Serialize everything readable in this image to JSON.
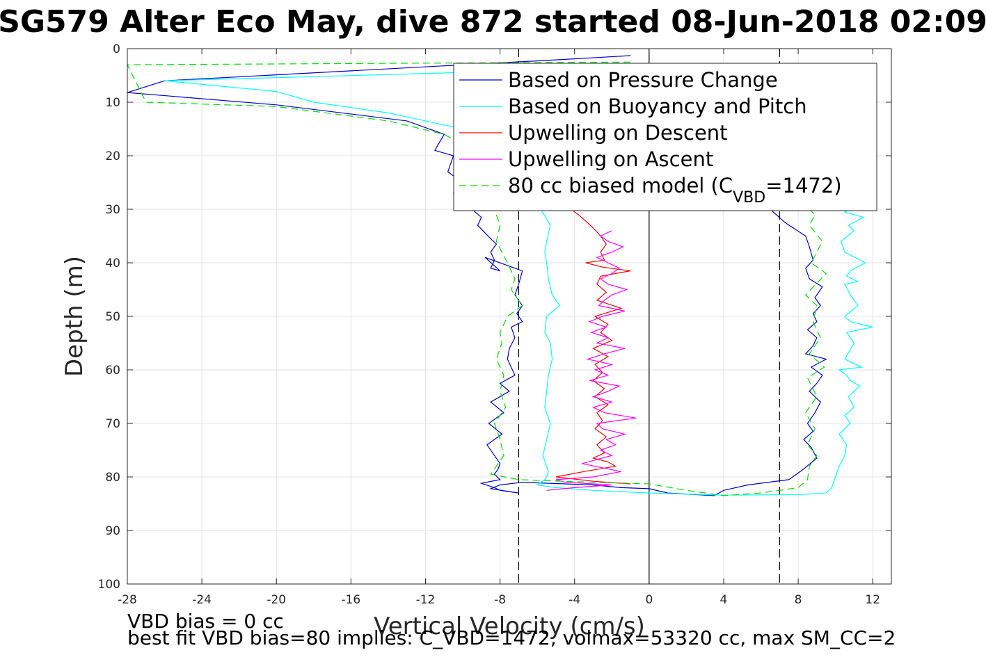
{
  "chart_data": {
    "type": "line",
    "title": "SG579 Alter Eco May, dive 872 started 08-Jun-2018 02:09",
    "xlabel": "Vertical Velocity (cm/s)",
    "ylabel": "Depth (m)",
    "xlim": [
      -28,
      13
    ],
    "ylim": [
      0,
      100
    ],
    "y_reversed": true,
    "xticks": [
      -28,
      -24,
      -20,
      -16,
      -12,
      -8,
      -4,
      0,
      4,
      8,
      12
    ],
    "yticks": [
      0,
      10,
      20,
      30,
      40,
      50,
      60,
      70,
      80,
      90,
      100
    ],
    "grid": true,
    "legend_placement": "top-right",
    "reference_lines": [
      {
        "x": -7,
        "style": "dashed",
        "color": "#000000"
      },
      {
        "x": 0,
        "style": "solid",
        "color": "#000000"
      },
      {
        "x": 7,
        "style": "dashed",
        "color": "#000000"
      }
    ],
    "series": [
      {
        "name": "Based on Pressure Change",
        "color": "#0000cd",
        "style": "solid",
        "x": [
          -1.0,
          -4.5,
          -26.0,
          -28.0,
          -20.0,
          -13.0,
          -11.0,
          -11.5,
          -10.5,
          -10.8,
          -10.0,
          -10.5,
          -10.2,
          -9.5,
          -9.0,
          -9.2,
          -8.5,
          -8.2,
          -8.5,
          -8.3,
          -8.5,
          -8.0,
          -8.8,
          -6.8,
          -7.0,
          -7.2,
          -6.8,
          -7.1,
          -6.8,
          -7.4,
          -7.2,
          -7.5,
          -7.6,
          -7.2,
          -8.0,
          -7.5,
          -8.5,
          -7.8,
          -8.6,
          -7.9,
          -8.7,
          -8.3,
          -8.0,
          -8.1,
          -8.3,
          -8.0,
          -9.0,
          -8.3,
          -8.0,
          -7.0,
          -8.5,
          -8.0,
          -6.8,
          -3.0,
          -1.5,
          0.0,
          1.0,
          3.5,
          4.0,
          5.3,
          7.5,
          8.3,
          9.0,
          8.7,
          8.3,
          8.8,
          8.5,
          8.9,
          9.2,
          8.6,
          9.0,
          9.3,
          8.7,
          9.5,
          8.4,
          8.8,
          9.0,
          8.5,
          9.0,
          8.8,
          9.2,
          8.9,
          9.3,
          8.6,
          8.4,
          8.8,
          8.6,
          8.4,
          7.3,
          6.5
        ],
        "y": [
          1.3,
          2.0,
          6.0,
          8.2,
          10.5,
          13.5,
          16.0,
          19.0,
          20.0,
          23.0,
          25.0,
          27.0,
          28.0,
          30.0,
          31.5,
          33.0,
          35.5,
          36.5,
          38.0,
          39.5,
          41.0,
          41.5,
          39.0,
          41.5,
          44.0,
          46.0,
          48.0,
          49.5,
          51.0,
          52.0,
          54.0,
          56.0,
          58.0,
          61.0,
          62.5,
          64.0,
          66.0,
          68.0,
          70.0,
          72.0,
          74.0,
          76.0,
          77.5,
          78.5,
          79.5,
          80.5,
          81.2,
          82.0,
          82.5,
          83.0,
          82.2,
          81.5,
          81.0,
          81.5,
          82.0,
          82.2,
          83.0,
          83.5,
          82.5,
          81.5,
          80.5,
          78.5,
          76.5,
          74.5,
          73.0,
          71.5,
          70.0,
          68.0,
          66.0,
          64.0,
          62.5,
          61.0,
          59.5,
          58.0,
          57.0,
          55.5,
          54.0,
          52.5,
          51.0,
          49.5,
          48.0,
          46.5,
          44.5,
          43.0,
          41.0,
          39.5,
          37.0,
          35.0,
          32.5,
          30.0
        ]
      },
      {
        "name": "Based on Buoyancy and Pitch",
        "color": "#00ffff",
        "style": "solid",
        "x": [
          -0.5,
          -26.0,
          -20.0,
          -18.0,
          -14.0,
          -12.0,
          -10.0,
          -8.5,
          -7.5,
          -6.8,
          -5.8,
          -5.3,
          -5.5,
          -5.6,
          -5.5,
          -5.4,
          -5.2,
          -4.8,
          -5.5,
          -5.6,
          -5.3,
          -5.2,
          -5.4,
          -5.5,
          -5.6,
          -5.3,
          -5.5,
          -5.7,
          -5.5,
          -5.4,
          -5.5,
          -5.6,
          -5.8,
          -6.0,
          -5.0,
          -3.0,
          0.0,
          4.0,
          8.0,
          9.5,
          9.8,
          10.0,
          10.2,
          10.5,
          10.6,
          10.2,
          10.8,
          10.5,
          11.0,
          10.7,
          11.3,
          10.8,
          10.6,
          10.2,
          11.4,
          10.5,
          11.0,
          10.6,
          12.0,
          10.8,
          10.5,
          11.2,
          10.8,
          10.5,
          11.2,
          10.6,
          10.8,
          11.6,
          10.5,
          10.3,
          11.0,
          10.7,
          11.5,
          10.5,
          10.8,
          10.3
        ],
        "y": [
          3.5,
          6.0,
          8.0,
          10.0,
          12.0,
          13.5,
          15.0,
          17.5,
          20.0,
          25.0,
          30.0,
          33.0,
          36.0,
          38.0,
          40.0,
          43.0,
          46.0,
          48.0,
          50.0,
          53.0,
          55.0,
          58.0,
          61.0,
          64.0,
          67.0,
          70.0,
          73.0,
          76.0,
          78.0,
          79.0,
          80.0,
          80.5,
          81.0,
          81.5,
          82.0,
          82.5,
          83.0,
          83.4,
          83.3,
          83.0,
          82.0,
          80.0,
          78.0,
          76.0,
          74.0,
          72.0,
          70.0,
          68.5,
          67.0,
          65.0,
          63.0,
          62.0,
          61.0,
          60.0,
          59.5,
          58.0,
          55.0,
          53.0,
          52.0,
          51.0,
          50.0,
          48.0,
          46.0,
          44.0,
          43.5,
          42.5,
          41.5,
          40.0,
          38.0,
          36.0,
          34.0,
          33.0,
          31.5,
          30.5,
          30.0,
          29.5
        ]
      },
      {
        "name": "Upwelling on Descent",
        "color": "#ff0000",
        "style": "solid",
        "x": [
          -4.2,
          -3.8,
          -3.3,
          -3.0,
          -2.6,
          -2.3,
          -2.6,
          -2.4,
          -3.4,
          -2.5,
          -1.0,
          -2.6,
          -2.8,
          -2.3,
          -2.8,
          -1.5,
          -2.9,
          -2.2,
          -2.6,
          -2.0,
          -3.0,
          -2.2,
          -2.9,
          -2.5,
          -3.0,
          -2.4,
          -2.9,
          -2.2,
          -2.8,
          -2.5,
          -2.9,
          -2.3,
          -2.8,
          -2.4,
          -3.0,
          -2.2,
          -1.8,
          -3.5,
          -5.0,
          -3.0,
          -1.0
        ],
        "y": [
          30.0,
          31.0,
          32.5,
          33.5,
          35.0,
          36.5,
          38.0,
          39.5,
          40.0,
          40.8,
          41.5,
          42.5,
          44.0,
          45.5,
          47.0,
          48.5,
          50.0,
          51.5,
          53.0,
          54.5,
          56.0,
          57.5,
          59.0,
          60.5,
          62.0,
          63.5,
          65.0,
          66.5,
          68.0,
          69.5,
          71.0,
          72.5,
          74.0,
          75.5,
          76.5,
          77.2,
          78.0,
          79.0,
          80.0,
          80.8,
          81.3
        ]
      },
      {
        "name": "Upwelling on Ascent",
        "color": "#ff00ff",
        "style": "solid",
        "x": [
          -5.5,
          -4.0,
          -2.0,
          -4.5,
          -5.0,
          -3.0,
          -1.5,
          -3.6,
          -2.0,
          -2.6,
          -1.8,
          -2.3,
          -1.3,
          -2.5,
          -2.8,
          -0.7,
          -2.4,
          -3.0,
          -2.0,
          -3.0,
          -2.2,
          -1.6,
          -3.2,
          -2.2,
          -2.9,
          -2.0,
          -3.3,
          -2.4,
          -1.3,
          -2.8,
          -2.2,
          -3.1,
          -2.3,
          -3.2,
          -2.5,
          -1.3,
          -2.7,
          -2.4,
          -2.0,
          -1.2,
          -2.2,
          -2.6,
          -2.0,
          -1.6,
          -2.2,
          -2.8,
          -2.0,
          -1.4,
          -2.2,
          -2.6,
          -2.0
        ],
        "y": [
          82.5,
          82.0,
          81.5,
          81.0,
          80.5,
          80.0,
          79.0,
          77.5,
          76.0,
          75.0,
          74.0,
          73.0,
          72.0,
          71.0,
          70.0,
          69.0,
          68.0,
          67.0,
          66.0,
          65.0,
          64.0,
          63.0,
          62.0,
          61.0,
          60.0,
          59.0,
          58.0,
          57.0,
          56.0,
          55.0,
          54.0,
          53.0,
          52.0,
          51.0,
          50.0,
          49.0,
          48.0,
          47.0,
          46.0,
          45.0,
          44.0,
          43.0,
          42.0,
          41.0,
          40.0,
          39.0,
          38.0,
          37.0,
          36.0,
          35.0,
          34.0
        ]
      },
      {
        "name": "80 cc biased model (C_VBD=1472)",
        "color": "#00dd00",
        "style": "dashed",
        "x": [
          -1.0,
          -28.0,
          -27.0,
          -20.0,
          -14.0,
          -11.0,
          -10.0,
          -9.0,
          -8.5,
          -8.0,
          -8.2,
          -7.6,
          -7.2,
          -7.4,
          -6.8,
          -7.6,
          -8.0,
          -7.9,
          -8.2,
          -7.8,
          -8.0,
          -7.7,
          -8.3,
          -8.0,
          -7.8,
          -8.2,
          -8.5,
          -7.0,
          -3.0,
          0.0,
          2.0,
          4.0,
          6.0,
          8.0,
          8.5,
          8.6,
          9.0,
          8.5,
          8.9,
          8.4,
          9.0,
          8.5,
          9.4,
          8.6,
          9.2,
          8.8,
          9.0,
          8.4,
          9.5,
          8.7,
          9.3,
          8.6,
          8.9,
          8.6
        ],
        "y": [
          2.5,
          3.0,
          10.0,
          10.8,
          13.5,
          16.0,
          18.0,
          22.0,
          28.0,
          33.0,
          36.0,
          40.0,
          43.0,
          45.0,
          48.0,
          50.0,
          53.0,
          55.0,
          58.0,
          61.0,
          64.0,
          67.0,
          70.0,
          73.0,
          76.0,
          78.0,
          79.5,
          80.5,
          81.0,
          81.3,
          82.5,
          83.5,
          83.0,
          82.0,
          80.5,
          78.0,
          76.0,
          74.0,
          71.0,
          68.0,
          65.0,
          61.5,
          59.5,
          57.0,
          54.0,
          51.0,
          48.0,
          46.0,
          42.0,
          40.0,
          36.0,
          33.0,
          31.0,
          30.0
        ]
      }
    ]
  },
  "legend": {
    "items": [
      {
        "label": "Based on Pressure Change",
        "color": "#0000cd",
        "style": "solid"
      },
      {
        "label": "Based on Buoyancy and Pitch",
        "color": "#00ffff",
        "style": "solid"
      },
      {
        "label": "Upwelling on Descent",
        "color": "#ff0000",
        "style": "solid"
      },
      {
        "label": "Upwelling on Ascent",
        "color": "#ff00ff",
        "style": "solid"
      },
      {
        "label": "80 cc biased model (C",
        "sub": "VBD",
        "tail": "=1472)",
        "color": "#00dd00",
        "style": "dashed"
      }
    ]
  },
  "notes": {
    "line1": "VBD bias = 0 cc",
    "line2": "best fit VBD bias=80 implies: C_VBD=1472, volmax=53320 cc, max SM_CC=2"
  }
}
